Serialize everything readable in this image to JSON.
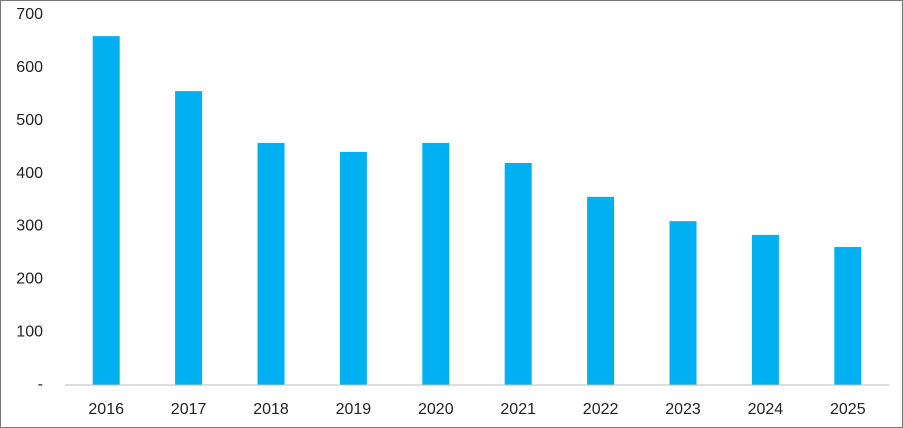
{
  "chart_data": {
    "type": "bar",
    "categories": [
      "2016",
      "2017",
      "2018",
      "2019",
      "2020",
      "2021",
      "2022",
      "2023",
      "2024",
      "2025"
    ],
    "values": [
      660,
      556,
      458,
      441,
      458,
      420,
      356,
      310,
      284,
      261
    ],
    "color": "#00b0f0",
    "ylim": [
      0,
      700
    ],
    "yticks": [
      {
        "value": 0,
        "label": "-"
      },
      100,
      200,
      300,
      400,
      500,
      600,
      700
    ],
    "grid": false
  }
}
